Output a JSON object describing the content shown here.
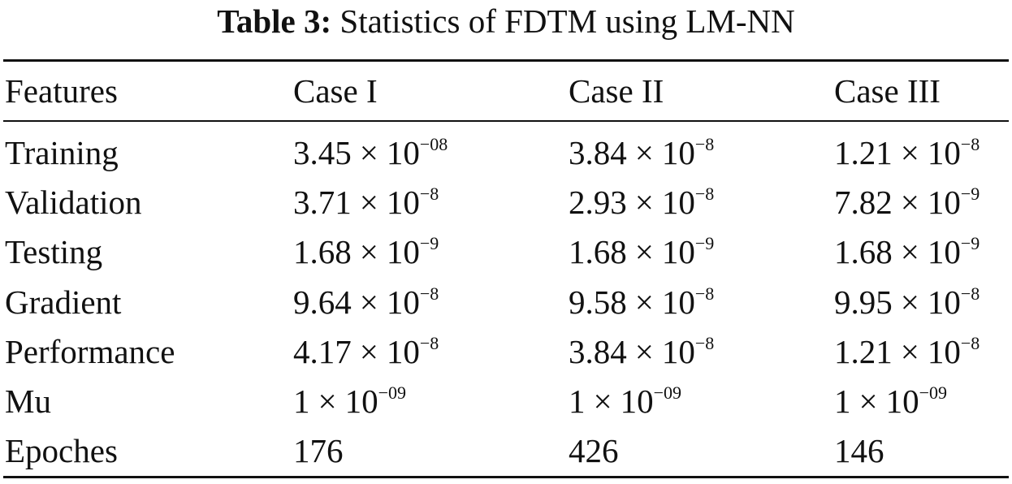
{
  "caption": {
    "label": "Table 3:",
    "text": "Statistics of FDTM using LM-NN"
  },
  "table": {
    "headers": [
      "Features",
      "Case I",
      "Case II",
      "Case III"
    ],
    "rows": [
      {
        "feature": "Training",
        "values": [
          {
            "m": "3.45",
            "e": "−08"
          },
          {
            "m": "3.84",
            "e": "−8"
          },
          {
            "m": "1.21",
            "e": "−8"
          }
        ]
      },
      {
        "feature": "Validation",
        "values": [
          {
            "m": "3.71",
            "e": "−8"
          },
          {
            "m": "2.93",
            "e": "−8"
          },
          {
            "m": "7.82",
            "e": "−9"
          }
        ]
      },
      {
        "feature": "Testing",
        "values": [
          {
            "m": "1.68",
            "e": "−9"
          },
          {
            "m": "1.68",
            "e": "−9"
          },
          {
            "m": "1.68",
            "e": "−9"
          }
        ]
      },
      {
        "feature": "Gradient",
        "values": [
          {
            "m": "9.64",
            "e": "−8"
          },
          {
            "m": "9.58",
            "e": "−8"
          },
          {
            "m": "9.95",
            "e": "−8"
          }
        ]
      },
      {
        "feature": "Performance",
        "values": [
          {
            "m": "4.17",
            "e": "−8"
          },
          {
            "m": "3.84",
            "e": "−8"
          },
          {
            "m": "1.21",
            "e": "−8"
          }
        ]
      },
      {
        "feature": "Mu",
        "values": [
          {
            "m": "1",
            "e": "−09"
          },
          {
            "m": "1",
            "e": "−09"
          },
          {
            "m": "1",
            "e": "−09"
          }
        ]
      },
      {
        "feature": "Epoches",
        "values": [
          {
            "plain": "176"
          },
          {
            "plain": "426"
          },
          {
            "plain": "146"
          }
        ]
      }
    ]
  },
  "symbols": {
    "times": "×",
    "base": "10"
  }
}
